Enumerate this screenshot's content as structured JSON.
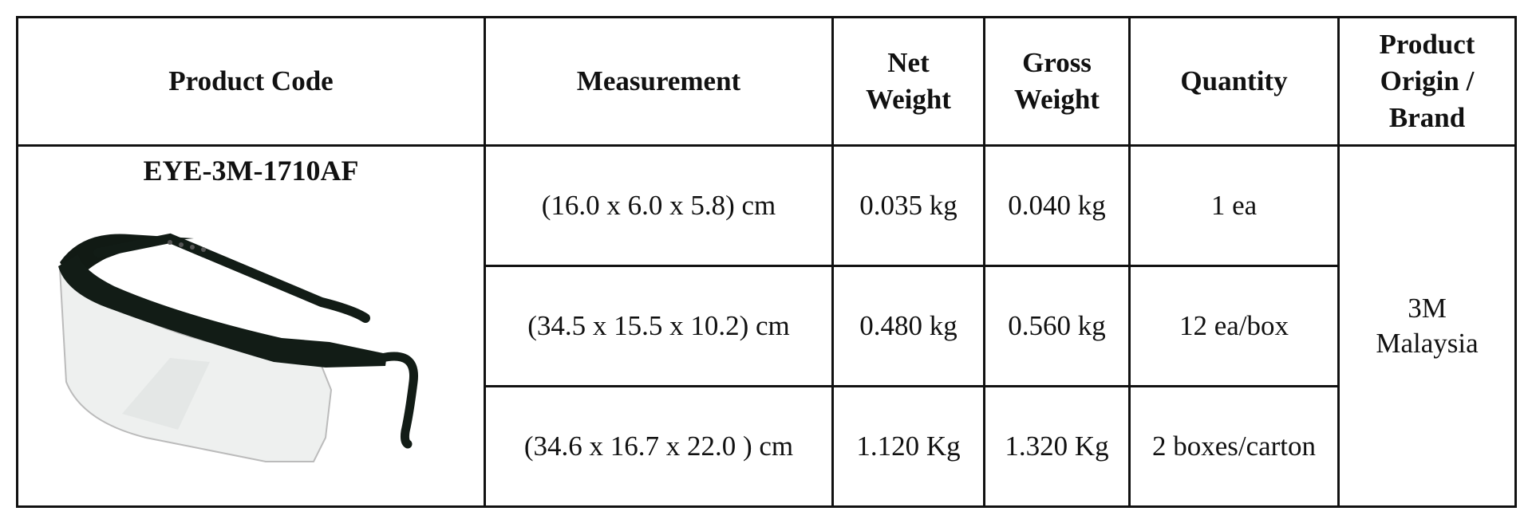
{
  "table": {
    "headers": [
      [
        "Product Code"
      ],
      [
        "Measurement"
      ],
      [
        "Net",
        "Weight"
      ],
      [
        "Gross",
        "Weight"
      ],
      [
        "Quantity"
      ],
      [
        "Product",
        "Origin /",
        "Brand"
      ]
    ],
    "product_code": "EYE-3M-1710AF",
    "rows": [
      [
        "(16.0 x 6.0 x 5.8) cm",
        "0.035 kg",
        "0.040 kg",
        "1 ea"
      ],
      [
        "(34.5 x 15.5 x 10.2) cm",
        "0.480 kg",
        "0.560 kg",
        "12 ea/box"
      ],
      [
        "(34.6 x 16.7 x 22.0 ) cm",
        "1.120 Kg",
        "1.320 Kg",
        "2 boxes/carton"
      ]
    ],
    "origin": [
      "3M",
      "Malaysia"
    ]
  }
}
